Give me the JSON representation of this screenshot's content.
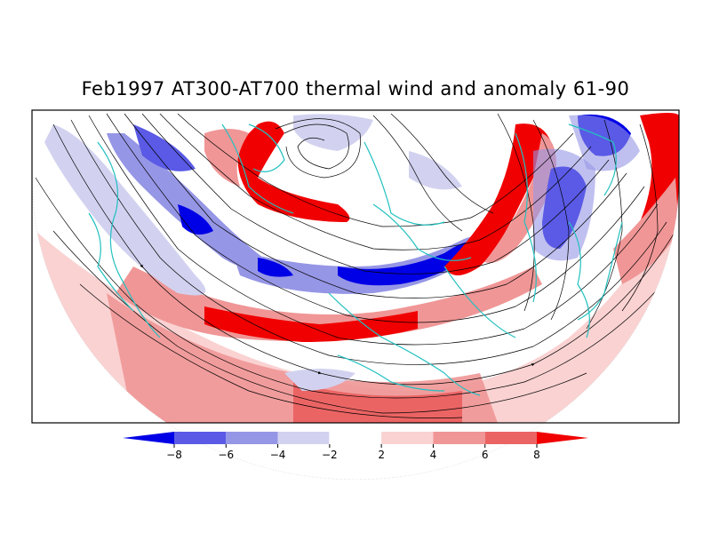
{
  "title": "Feb1997 AT300-AT700 thermal wind and anomaly 61-90",
  "map": {
    "projection": "north-polar-stereographic",
    "coastline_color": "#22c0c0",
    "streamline_color": "#000000"
  },
  "colorbar": {
    "labels": [
      "-8",
      "-6",
      "-4",
      "-2",
      "2",
      "4",
      "6",
      "8"
    ],
    "colors": [
      "#0000e6",
      "#5a5ae6",
      "#9696e6",
      "#d2d2f0",
      "#ffffff",
      "#fad2d2",
      "#f09696",
      "#eb6464",
      "#f00000"
    ]
  }
}
